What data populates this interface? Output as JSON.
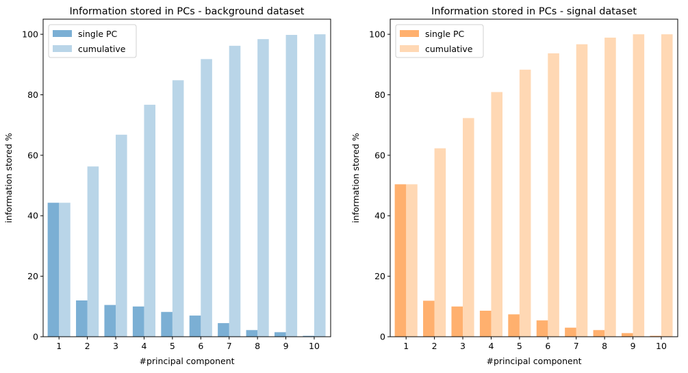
{
  "chart_data": [
    {
      "type": "bar",
      "title": "Information stored in PCs - background dataset",
      "xlabel": "#principal component",
      "ylabel": "information stored %",
      "categories": [
        "1",
        "2",
        "3",
        "4",
        "5",
        "6",
        "7",
        "8",
        "9",
        "10"
      ],
      "ylim": [
        0,
        105
      ],
      "yticks": [
        0,
        20,
        40,
        60,
        80,
        100
      ],
      "legend_position": "top-left",
      "series": [
        {
          "name": "single PC",
          "color": "#7bafd4",
          "values": [
            44.3,
            12.0,
            10.5,
            10.0,
            8.2,
            7.0,
            4.5,
            2.2,
            1.5,
            0.3
          ]
        },
        {
          "name": "cumulative",
          "color": "#b9d5e8",
          "values": [
            44.3,
            56.3,
            66.8,
            76.7,
            84.8,
            91.8,
            96.2,
            98.4,
            99.8,
            100.0
          ]
        }
      ]
    },
    {
      "type": "bar",
      "title": "Information stored in PCs - signal dataset",
      "xlabel": "#principal component",
      "ylabel": "information stored %",
      "categories": [
        "1",
        "2",
        "3",
        "4",
        "5",
        "6",
        "7",
        "8",
        "9",
        "10"
      ],
      "ylim": [
        0,
        105
      ],
      "yticks": [
        0,
        20,
        40,
        60,
        80,
        100
      ],
      "legend_position": "top-left",
      "series": [
        {
          "name": "single PC",
          "color": "#ffb06e",
          "values": [
            50.4,
            11.9,
            10.0,
            8.6,
            7.4,
            5.4,
            3.0,
            2.2,
            1.2,
            0.3
          ]
        },
        {
          "name": "cumulative",
          "color": "#ffd8b4",
          "values": [
            50.4,
            62.3,
            72.3,
            80.9,
            88.3,
            93.7,
            96.7,
            98.9,
            100.0,
            100.0
          ]
        }
      ]
    }
  ]
}
